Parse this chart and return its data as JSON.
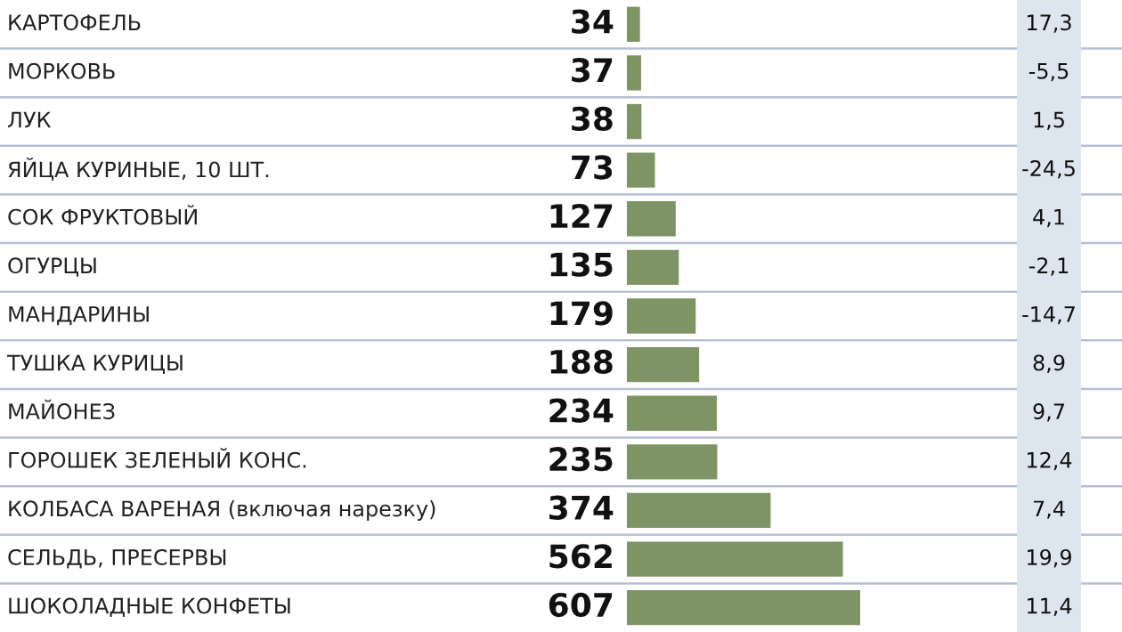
{
  "chart_data": {
    "type": "bar",
    "orientation": "horizontal",
    "categories": [
      "КАРТОФЕЛЬ",
      "МОРКОВЬ",
      "ЛУК",
      "ЯЙЦА КУРИНЫЕ, 10 ШТ.",
      "СОК ФРУКТОВЫЙ",
      "ОГУРЦЫ",
      "МАНДАРИНЫ",
      "ТУШКА КУРИЦЫ",
      "МАЙОНЕЗ",
      "ГОРОШЕК ЗЕЛЕНЫЙ КОНС.",
      "КОЛБАСА ВАРЕНАЯ (включая нарезку)",
      "СЕЛЬДЬ, ПРЕСЕРВЫ",
      "ШОКОЛАДНЫЕ КОНФЕТЫ"
    ],
    "values": [
      34,
      37,
      38,
      73,
      127,
      135,
      179,
      188,
      234,
      235,
      374,
      562,
      607
    ],
    "color": "#7f9464",
    "data_labels": true,
    "annotations": [
      "17,3",
      "-5,5",
      "1,5",
      "-24,5",
      "4,1",
      "-2,1",
      "-14,7",
      "8,9",
      "9,7",
      "12,4",
      "7,4",
      "19,9",
      "11,4"
    ],
    "grid": "y"
  }
}
